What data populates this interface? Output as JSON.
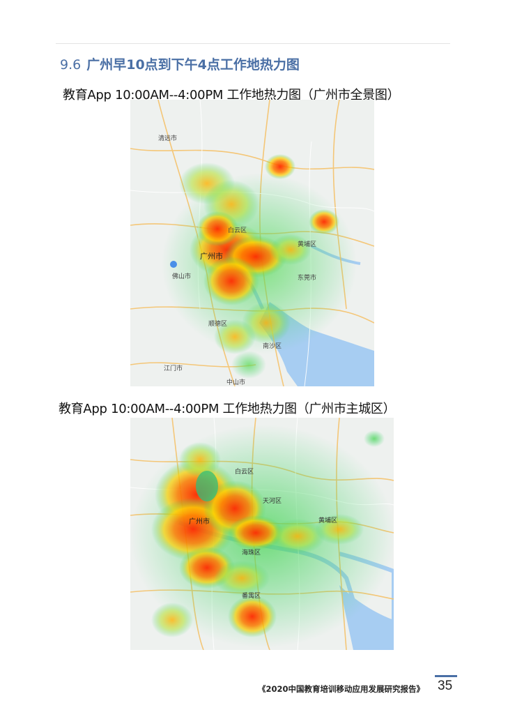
{
  "section": {
    "number": "9.6",
    "title": "广州早10点到下午4点工作地热力图"
  },
  "figures": [
    {
      "caption": "教育App 10:00AM--4:00PM 工作地热力图（广州市全景图）",
      "labels": [
        "清远市",
        "广州市",
        "佛山市",
        "东莞市",
        "顺德区",
        "江门市",
        "中山市",
        "南沙区",
        "黄埔区",
        "白云区"
      ]
    },
    {
      "caption": "教育App 10:00AM--4:00PM 工作地热力图（广州市主城区）",
      "labels": [
        "广州市",
        "黄埔区",
        "番禺区",
        "天河区",
        "海珠区",
        "白云区"
      ]
    }
  ],
  "footer": {
    "report_title": "《2020中国教育培训移动应用发展研究报告》",
    "page_number": "35"
  },
  "colors": {
    "heading": "#4a6fa5",
    "heat_high": "#ff2a00",
    "heat_mid": "#ffd000",
    "heat_low": "#3bd36a"
  }
}
